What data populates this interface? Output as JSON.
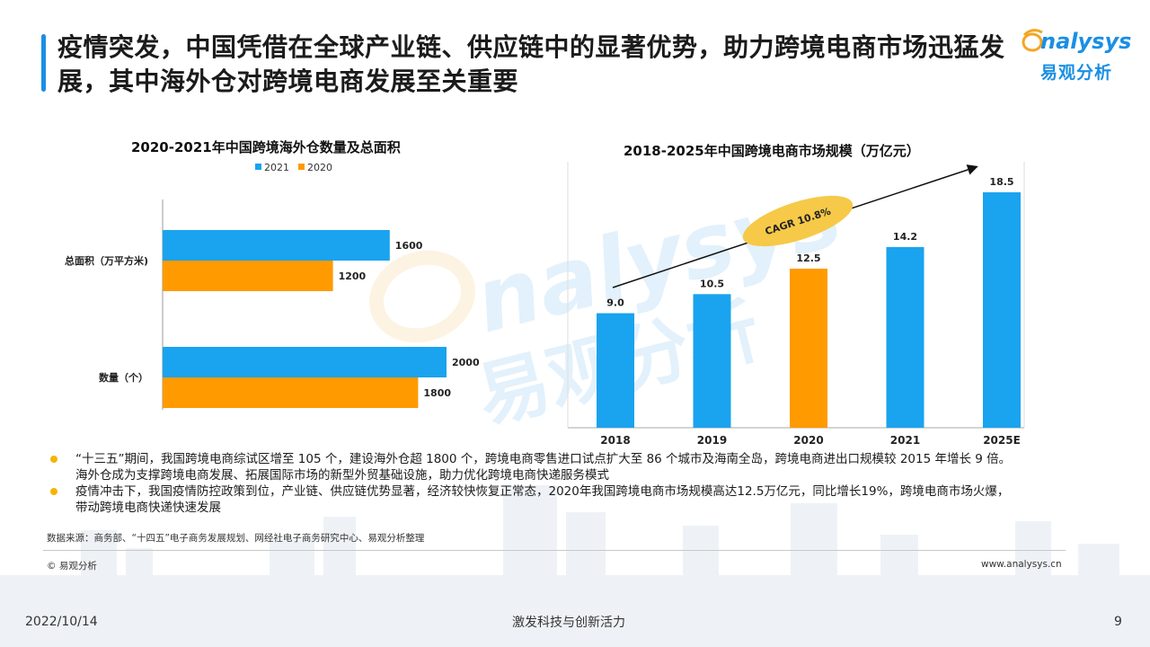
{
  "header": {
    "title": "疫情突发，中国凭借在全球产业链、供应链中的显著优势，助力跨境电商市场迅猛发展，其中海外仓对跨境电商发展至关重要",
    "logo_en": "nalysys",
    "logo_cn": "易观分析"
  },
  "colors": {
    "blue": "#1aa3ee",
    "orange": "#ff9a00",
    "accent": "#1a8fe3",
    "cagr_fill": "#f7c948"
  },
  "chart_data": [
    {
      "type": "bar",
      "orientation": "horizontal",
      "title": "2020-2021年中国跨境海外仓数量及总面积",
      "categories": [
        "总面积（万平方米)",
        "数量（个）"
      ],
      "series": [
        {
          "name": "2021",
          "values": [
            1600,
            2000
          ]
        },
        {
          "name": "2020",
          "values": [
            1200,
            1800
          ]
        }
      ],
      "legend": "top-center",
      "data_labels": true
    },
    {
      "type": "bar",
      "title": "2018-2025年中国跨境电商市场规模（万亿元）",
      "categories": [
        "2018",
        "2019",
        "2020",
        "2021",
        "2025E"
      ],
      "values": [
        9.0,
        10.5,
        12.5,
        14.2,
        18.5
      ],
      "value_labels": [
        "9.0",
        "10.5",
        "12.5",
        "14.2",
        "18.5"
      ],
      "highlight_category": "2020",
      "annotation": "CAGR 10.8%",
      "data_labels": true
    }
  ],
  "bullets": [
    "“十三五”期间，我国跨境电商综试区增至 105 个，建设海外仓超 1800 个，跨境电商零售进口试点扩大至 86 个城市及海南全岛，跨境电商进出口规模较 2015 年增长 9 倍。海外仓成为支撑跨境电商发展、拓展国际市场的新型外贸基础设施，助力优化跨境电商快递服务模式",
    "疫情冲击下，我国疫情防控政策到位，产业链、供应链优势显著，经济较快恢复正常态，2020年我国跨境电商市场规模高达12.5万亿元，同比增长19%，跨境电商市场火爆，带动跨境电商快递快速发展"
  ],
  "source": "数据来源：商务部、“十四五”电子商务发展规划、网经社电子商务研究中心、易观分析整理",
  "copyright": "© 易观分析",
  "website": "www.analysys.cn",
  "footer": {
    "date": "2022/10/14",
    "slogan": "激发科技与创新活力",
    "page": "9"
  }
}
